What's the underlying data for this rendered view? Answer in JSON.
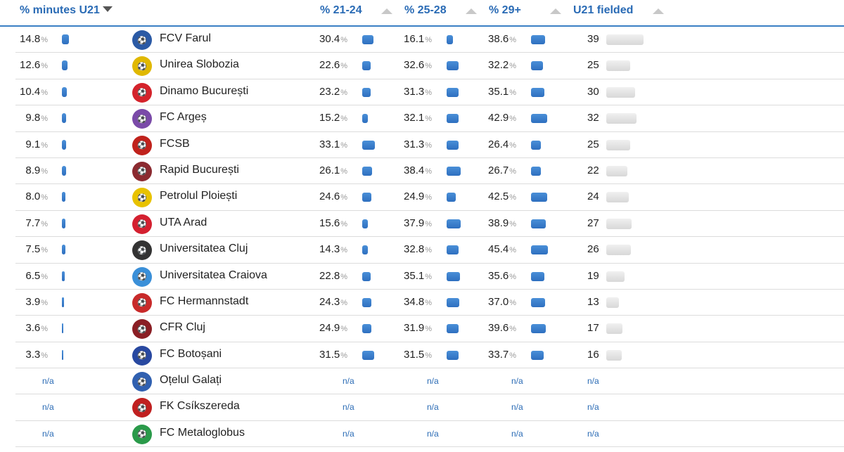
{
  "header": {
    "u21_minutes": "% minutes U21",
    "p21_24": "% 21-24",
    "p25_28": "% 25-28",
    "p29": "% 29+",
    "u21_fielded": "U21 fielded"
  },
  "pct_symbol": "%",
  "na_text": "n/a",
  "rows": [
    {
      "u21": "14.8",
      "u21v": 14.8,
      "team": "FCV Farul",
      "logo": "#2b5aa5",
      "a": "30.4",
      "av": 30.4,
      "b": "16.1",
      "bv": 16.1,
      "c": "38.6",
      "cv": 38.6,
      "n": "39",
      "nv": 39
    },
    {
      "u21": "12.6",
      "u21v": 12.6,
      "team": "Unirea Slobozia",
      "logo": "#e0b800",
      "a": "22.6",
      "av": 22.6,
      "b": "32.6",
      "bv": 32.6,
      "c": "32.2",
      "cv": 32.2,
      "n": "25",
      "nv": 25
    },
    {
      "u21": "10.4",
      "u21v": 10.4,
      "team": "Dinamo București",
      "logo": "#d4232b",
      "a": "23.2",
      "av": 23.2,
      "b": "31.3",
      "bv": 31.3,
      "c": "35.1",
      "cv": 35.1,
      "n": "30",
      "nv": 30
    },
    {
      "u21": "9.8",
      "u21v": 9.8,
      "team": "FC Argeș",
      "logo": "#7a4aa8",
      "a": "15.2",
      "av": 15.2,
      "b": "32.1",
      "bv": 32.1,
      "c": "42.9",
      "cv": 42.9,
      "n": "32",
      "nv": 32
    },
    {
      "u21": "9.1",
      "u21v": 9.1,
      "team": "FCSB",
      "logo": "#c0221c",
      "a": "33.1",
      "av": 33.1,
      "b": "31.3",
      "bv": 31.3,
      "c": "26.4",
      "cv": 26.4,
      "n": "25",
      "nv": 25
    },
    {
      "u21": "8.9",
      "u21v": 8.9,
      "team": "Rapid București",
      "logo": "#8b2a30",
      "a": "26.1",
      "av": 26.1,
      "b": "38.4",
      "bv": 38.4,
      "c": "26.7",
      "cv": 26.7,
      "n": "22",
      "nv": 22
    },
    {
      "u21": "8.0",
      "u21v": 8.0,
      "team": "Petrolul Ploiești",
      "logo": "#e8c200",
      "a": "24.6",
      "av": 24.6,
      "b": "24.9",
      "bv": 24.9,
      "c": "42.5",
      "cv": 42.5,
      "n": "24",
      "nv": 24
    },
    {
      "u21": "7.7",
      "u21v": 7.7,
      "team": "UTA Arad",
      "logo": "#d42030",
      "a": "15.6",
      "av": 15.6,
      "b": "37.9",
      "bv": 37.9,
      "c": "38.9",
      "cv": 38.9,
      "n": "27",
      "nv": 27
    },
    {
      "u21": "7.5",
      "u21v": 7.5,
      "team": "Universitatea Cluj",
      "logo": "#333333",
      "a": "14.3",
      "av": 14.3,
      "b": "32.8",
      "bv": 32.8,
      "c": "45.4",
      "cv": 45.4,
      "n": "26",
      "nv": 26
    },
    {
      "u21": "6.5",
      "u21v": 6.5,
      "team": "Universitatea Craiova",
      "logo": "#3a8fd8",
      "a": "22.8",
      "av": 22.8,
      "b": "35.1",
      "bv": 35.1,
      "c": "35.6",
      "cv": 35.6,
      "n": "19",
      "nv": 19
    },
    {
      "u21": "3.9",
      "u21v": 3.9,
      "team": "FC Hermannstadt",
      "logo": "#c82a2a",
      "a": "24.3",
      "av": 24.3,
      "b": "34.8",
      "bv": 34.8,
      "c": "37.0",
      "cv": 37.0,
      "n": "13",
      "nv": 13
    },
    {
      "u21": "3.6",
      "u21v": 3.6,
      "team": "CFR Cluj",
      "logo": "#8a1e24",
      "a": "24.9",
      "av": 24.9,
      "b": "31.9",
      "bv": 31.9,
      "c": "39.6",
      "cv": 39.6,
      "n": "17",
      "nv": 17
    },
    {
      "u21": "3.3",
      "u21v": 3.3,
      "team": "FC Botoșani",
      "logo": "#2848a0",
      "a": "31.5",
      "av": 31.5,
      "b": "31.5",
      "bv": 31.5,
      "c": "33.7",
      "cv": 33.7,
      "n": "16",
      "nv": 16
    },
    {
      "u21": null,
      "team": "Oțelul Galați",
      "logo": "#3060b0",
      "a": null,
      "b": null,
      "c": null,
      "n": null
    },
    {
      "u21": null,
      "team": "FK Csíkszereda",
      "logo": "#c02020",
      "a": null,
      "b": null,
      "c": null,
      "n": null
    },
    {
      "u21": null,
      "team": "FC Metaloglobus",
      "logo": "#2a9a4a",
      "a": null,
      "b": null,
      "c": null,
      "n": null
    }
  ]
}
